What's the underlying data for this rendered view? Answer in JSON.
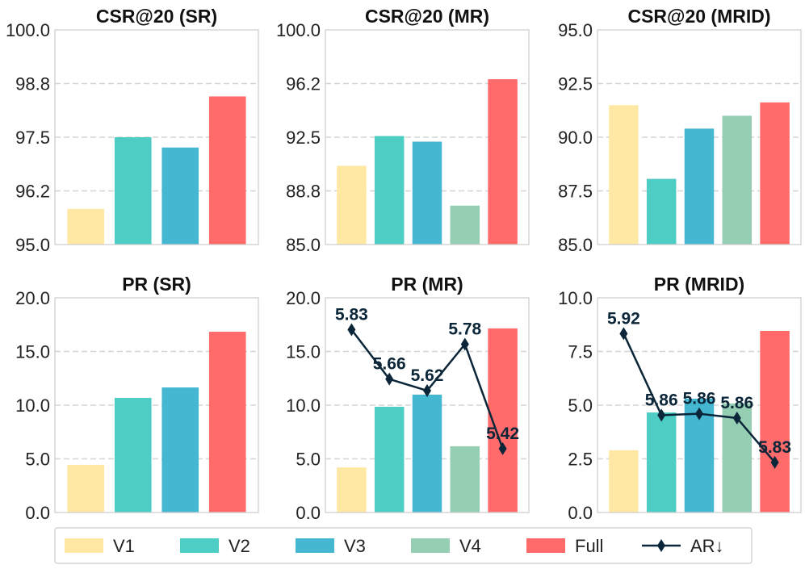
{
  "colors": {
    "V1": "#FFE8A3",
    "V2": "#4ECDC4",
    "V3": "#45B7D1",
    "V4": "#96CEB4",
    "Full": "#FF6B6B",
    "AR": "#0B2638",
    "grid": "#D5D5D5",
    "frame": "#CCCCCC"
  },
  "legend": {
    "items": [
      {
        "label": "V1",
        "key": "V1",
        "kind": "bar"
      },
      {
        "label": "V2",
        "key": "V2",
        "kind": "bar"
      },
      {
        "label": "V3",
        "key": "V3",
        "kind": "bar"
      },
      {
        "label": "V4",
        "key": "V4",
        "kind": "bar"
      },
      {
        "label": "Full",
        "key": "Full",
        "kind": "bar"
      },
      {
        "label": "AR↓",
        "key": "AR",
        "kind": "line"
      }
    ],
    "placement": "bottom"
  },
  "chart_data": [
    {
      "type": "bar",
      "title": "CSR@20 (SR)",
      "categories": [
        "V1",
        "V2",
        "V3",
        "Full"
      ],
      "values": [
        95.83,
        97.5,
        97.26,
        98.45
      ],
      "ylim": [
        95,
        100
      ],
      "yticks": [
        "95.0",
        "96.2",
        "97.5",
        "98.8",
        "100.0"
      ],
      "grid": true
    },
    {
      "type": "bar",
      "title": "CSR@20 (MR)",
      "categories": [
        "V1",
        "V2",
        "V3",
        "V4",
        "Full"
      ],
      "values": [
        90.5,
        92.58,
        92.19,
        87.72,
        96.55
      ],
      "ylim": [
        85,
        100
      ],
      "yticks": [
        "85.0",
        "88.8",
        "92.5",
        "96.2",
        "100.0"
      ],
      "grid": true
    },
    {
      "type": "bar",
      "title": "CSR@20 (MRID)",
      "categories": [
        "V1",
        "V2",
        "V3",
        "V4",
        "Full"
      ],
      "values": [
        91.49,
        88.06,
        90.4,
        91.0,
        91.62
      ],
      "ylim": [
        85,
        95
      ],
      "yticks": [
        "85.0",
        "87.5",
        "90.0",
        "92.5",
        "95.0"
      ],
      "grid": true
    },
    {
      "type": "bar",
      "title": "PR (SR)",
      "categories": [
        "V1",
        "V2",
        "V3",
        "Full"
      ],
      "values": [
        4.44,
        10.68,
        11.65,
        16.84
      ],
      "ylim": [
        0,
        20
      ],
      "yticks": [
        "0.0",
        "5.0",
        "10.0",
        "15.0",
        "20.0"
      ],
      "grid": true
    },
    {
      "type": "bar",
      "title": "PR (MR)",
      "categories": [
        "V1",
        "V2",
        "V3",
        "V4",
        "Full"
      ],
      "values": [
        4.2,
        9.85,
        10.98,
        6.17,
        17.15
      ],
      "ylim": [
        0,
        20
      ],
      "yticks": [
        "0.0",
        "5.0",
        "10.0",
        "15.0",
        "20.0"
      ],
      "grid": true,
      "ar": {
        "values": [
          5.83,
          5.66,
          5.62,
          5.78,
          5.42
        ],
        "labels": [
          "5.83",
          "5.66",
          "5.62",
          "5.78",
          "5.42"
        ],
        "ylim": [
          5.2,
          5.94
        ]
      }
    },
    {
      "type": "bar",
      "title": "PR (MRID)",
      "categories": [
        "V1",
        "V2",
        "V3",
        "V4",
        "Full"
      ],
      "values": [
        2.9,
        4.66,
        5.3,
        5.08,
        8.46
      ],
      "ylim": [
        0,
        10
      ],
      "yticks": [
        "0.0",
        "2.5",
        "5.0",
        "7.5",
        "10.0"
      ],
      "grid": true,
      "ar": {
        "values": [
          5.92,
          5.863,
          5.864,
          5.861,
          5.83
        ],
        "labels": [
          "5.92",
          "5.86",
          "5.86",
          "5.86",
          "5.83"
        ],
        "ylim": [
          5.795,
          5.945
        ]
      }
    }
  ]
}
